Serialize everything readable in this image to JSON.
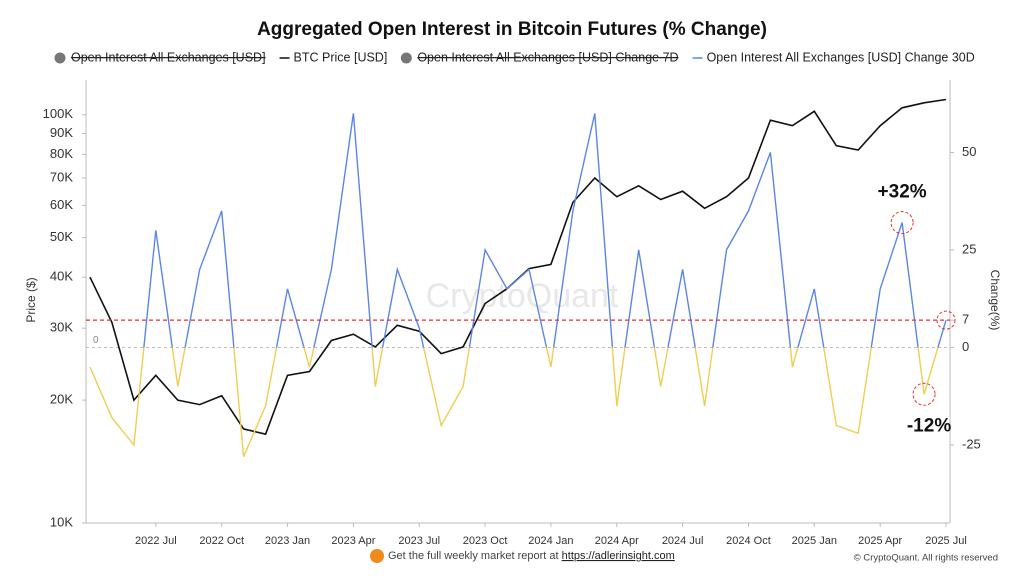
{
  "chart_data": {
    "type": "line",
    "title": "Aggregated Open Interest in Bitcoin Futures (% Change)",
    "legend_hidden": [
      "Open Interest All Exchanges [USD]",
      "Open Interest All Exchanges [USD] Change 7D"
    ],
    "x": [
      "2022-04",
      "2022-05",
      "2022-06",
      "2022-07",
      "2022-08",
      "2022-09",
      "2022-10",
      "2022-11",
      "2022-12",
      "2023-01",
      "2023-02",
      "2023-03",
      "2023-04",
      "2023-05",
      "2023-06",
      "2023-07",
      "2023-08",
      "2023-09",
      "2023-10",
      "2023-11",
      "2023-12",
      "2024-01",
      "2024-02",
      "2024-03",
      "2024-04",
      "2024-05",
      "2024-06",
      "2024-07",
      "2024-08",
      "2024-09",
      "2024-10",
      "2024-11",
      "2024-12",
      "2025-01",
      "2025-02",
      "2025-03",
      "2025-04",
      "2025-05",
      "2025-06",
      "2025-07"
    ],
    "xticks": [
      {
        "value": "2022-07",
        "label": "2022 Jul"
      },
      {
        "value": "2022-10",
        "label": "2022 Oct"
      },
      {
        "value": "2023-01",
        "label": "2023 Jan"
      },
      {
        "value": "2023-04",
        "label": "2023 Apr"
      },
      {
        "value": "2023-07",
        "label": "2023 Jul"
      },
      {
        "value": "2023-10",
        "label": "2023 Oct"
      },
      {
        "value": "2024-01",
        "label": "2024 Jan"
      },
      {
        "value": "2024-04",
        "label": "2024 Apr"
      },
      {
        "value": "2024-07",
        "label": "2024 Jul"
      },
      {
        "value": "2024-10",
        "label": "2024 Oct"
      },
      {
        "value": "2025-01",
        "label": "2025 Jan"
      },
      {
        "value": "2025-04",
        "label": "2025 Apr"
      },
      {
        "value": "2025-07",
        "label": "2025 Jul"
      }
    ],
    "series": [
      {
        "name": "BTC Price [USD]",
        "color": "#111111",
        "values": [
          40000,
          31000,
          20000,
          23000,
          20000,
          19500,
          20500,
          17000,
          16500,
          23000,
          23500,
          28000,
          29000,
          27000,
          30500,
          29500,
          26000,
          27000,
          34500,
          37500,
          42000,
          43000,
          61000,
          70000,
          63000,
          67000,
          62000,
          65000,
          59000,
          63000,
          70000,
          97000,
          94000,
          102000,
          84000,
          82000,
          94000,
          104000,
          107000,
          109000
        ]
      },
      {
        "name": "Open Interest All Exchanges [USD] Change 30D",
        "color": "#5b86e5",
        "negative_color": "#f0cd52",
        "axis": "y2",
        "values": [
          -5,
          -18,
          -25,
          30,
          -10,
          20,
          35,
          -28,
          -15,
          15,
          -5,
          20,
          60,
          -10,
          20,
          5,
          -20,
          -10,
          25,
          15,
          20,
          -5,
          35,
          60,
          -15,
          25,
          -10,
          20,
          -15,
          25,
          35,
          50,
          -5,
          15,
          -20,
          -22,
          15,
          32,
          -12,
          7
        ]
      }
    ],
    "ylabel": "Price ($)",
    "y2label": "Change(%)",
    "log_y": true,
    "ylim": [
      10000,
      115000
    ],
    "yticks": [
      {
        "value": 10000,
        "label": "10K"
      },
      {
        "value": 20000,
        "label": "20K"
      },
      {
        "value": 30000,
        "label": "30K"
      },
      {
        "value": 40000,
        "label": "40K"
      },
      {
        "value": 50000,
        "label": "50K"
      },
      {
        "value": 60000,
        "label": "60K"
      },
      {
        "value": 70000,
        "label": "70K"
      },
      {
        "value": 80000,
        "label": "80K"
      },
      {
        "value": 90000,
        "label": "90K"
      },
      {
        "value": 100000,
        "label": "100K"
      }
    ],
    "y2lim": [
      -45,
      66
    ],
    "y2ticks": [
      -25,
      0,
      7,
      25,
      50
    ],
    "threshold": 7,
    "threshold_color": "#e03030",
    "annotations": [
      {
        "text": "+32%",
        "index": 37
      },
      {
        "text": "-12%",
        "index": 38
      }
    ],
    "watermark": "CryptoQuant",
    "footer": "Get the full weekly market report at ",
    "footer_link": "https://adlerinsight.com",
    "copyright": "© CryptoQuant. All rights reserved"
  }
}
